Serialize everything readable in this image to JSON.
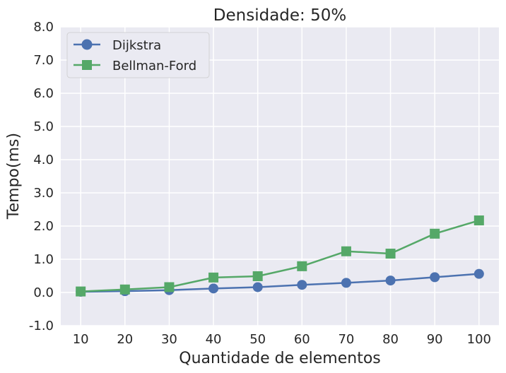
{
  "chart_data": {
    "type": "line",
    "title": "Densidade: 50%",
    "xlabel": "Quantidade de elementos",
    "ylabel": "Tempo(ms)",
    "x": [
      10,
      20,
      30,
      40,
      50,
      60,
      70,
      80,
      90,
      100
    ],
    "x_tick_labels": [
      "10",
      "20",
      "30",
      "40",
      "50",
      "60",
      "70",
      "80",
      "90",
      "100"
    ],
    "ylim": [
      -1.0,
      8.0
    ],
    "y_tick_labels": [
      "-1.0",
      "0.0",
      "1.0",
      "2.0",
      "3.0",
      "4.0",
      "5.0",
      "6.0",
      "7.0",
      "8.0"
    ],
    "y_ticks": [
      -1,
      0,
      1,
      2,
      3,
      4,
      5,
      6,
      7,
      8
    ],
    "grid": true,
    "legend_position": "top-left",
    "series": [
      {
        "name": "Dijkstra",
        "color": "#4C72B0",
        "marker": "circle",
        "values": [
          0.02,
          0.04,
          0.07,
          0.12,
          0.16,
          0.23,
          0.29,
          0.36,
          0.46,
          0.56
        ]
      },
      {
        "name": "Bellman-Ford",
        "color": "#55A868",
        "marker": "square",
        "values": [
          0.03,
          0.09,
          0.16,
          0.45,
          0.49,
          0.79,
          1.24,
          1.17,
          1.77,
          2.17
        ]
      }
    ],
    "background_color": "#EAEAF2",
    "grid_color": "#FFFFFF"
  }
}
